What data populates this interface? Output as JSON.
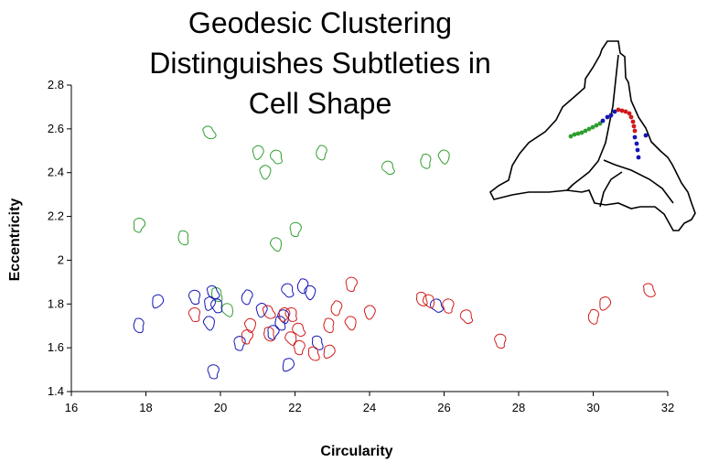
{
  "chart_data": {
    "type": "scatter",
    "title_lines": [
      "Geodesic Clustering",
      "Distinguishes Subtleties in",
      "Cell Shape"
    ],
    "xlabel": "Circularity",
    "ylabel": "Eccentricity",
    "xlim": [
      16,
      32
    ],
    "ylim": [
      1.4,
      2.8
    ],
    "xticks": [
      16,
      18,
      20,
      22,
      24,
      26,
      28,
      30,
      32
    ],
    "xtick_labels": [
      "16",
      "18",
      "20",
      "22",
      "24",
      "26",
      "28",
      "30",
      "32"
    ],
    "yticks": [
      1.4,
      1.6,
      1.8,
      2.0,
      2.2,
      2.4,
      2.6,
      2.8
    ],
    "ytick_labels": [
      "1.4",
      "1.6",
      "1.8",
      "2",
      "2.2",
      "2.4",
      "2.6",
      "2.8"
    ],
    "grid": false,
    "legend": "none",
    "marker": "cell-outline-glyph",
    "series": [
      {
        "color": "#2e9e2e",
        "points": [
          [
            19.7,
            2.58
          ],
          [
            21.0,
            2.49
          ],
          [
            21.5,
            2.47
          ],
          [
            22.7,
            2.49
          ],
          [
            21.2,
            2.4
          ],
          [
            24.5,
            2.42
          ],
          [
            25.5,
            2.45
          ],
          [
            26.0,
            2.47
          ],
          [
            17.8,
            2.16
          ],
          [
            19.0,
            2.1
          ],
          [
            21.5,
            2.07
          ],
          [
            22.0,
            2.14
          ],
          [
            19.9,
            1.84
          ],
          [
            20.2,
            1.77
          ]
        ]
      },
      {
        "color": "#1515b5",
        "points": [
          [
            18.3,
            1.81
          ],
          [
            19.3,
            1.83
          ],
          [
            19.8,
            1.85
          ],
          [
            19.7,
            1.8
          ],
          [
            19.9,
            1.79
          ],
          [
            20.7,
            1.83
          ],
          [
            21.1,
            1.77
          ],
          [
            21.8,
            1.86
          ],
          [
            22.2,
            1.88
          ],
          [
            22.4,
            1.85
          ],
          [
            25.8,
            1.79
          ],
          [
            17.8,
            1.7
          ],
          [
            19.7,
            1.71
          ],
          [
            21.4,
            1.67
          ],
          [
            21.6,
            1.71
          ],
          [
            21.7,
            1.74
          ],
          [
            20.5,
            1.62
          ],
          [
            22.6,
            1.62
          ],
          [
            21.8,
            1.52
          ],
          [
            19.8,
            1.49
          ]
        ]
      },
      {
        "color": "#d11a1a",
        "points": [
          [
            23.5,
            1.89
          ],
          [
            25.4,
            1.82
          ],
          [
            25.6,
            1.81
          ],
          [
            26.1,
            1.79
          ],
          [
            31.5,
            1.86
          ],
          [
            30.3,
            1.8
          ],
          [
            19.3,
            1.75
          ],
          [
            21.3,
            1.76
          ],
          [
            21.7,
            1.75
          ],
          [
            21.9,
            1.75
          ],
          [
            23.1,
            1.78
          ],
          [
            24.0,
            1.76
          ],
          [
            26.6,
            1.74
          ],
          [
            30.0,
            1.74
          ],
          [
            20.8,
            1.7
          ],
          [
            22.1,
            1.68
          ],
          [
            22.9,
            1.7
          ],
          [
            23.5,
            1.71
          ],
          [
            20.7,
            1.65
          ],
          [
            21.3,
            1.66
          ],
          [
            21.9,
            1.64
          ],
          [
            22.1,
            1.6
          ],
          [
            22.5,
            1.57
          ],
          [
            22.9,
            1.58
          ],
          [
            27.5,
            1.63
          ]
        ]
      }
    ]
  },
  "inset": {
    "outline_color": "#000000",
    "path_colors": [
      "#2e9e2e",
      "#1515b5",
      "#d11a1a"
    ]
  }
}
